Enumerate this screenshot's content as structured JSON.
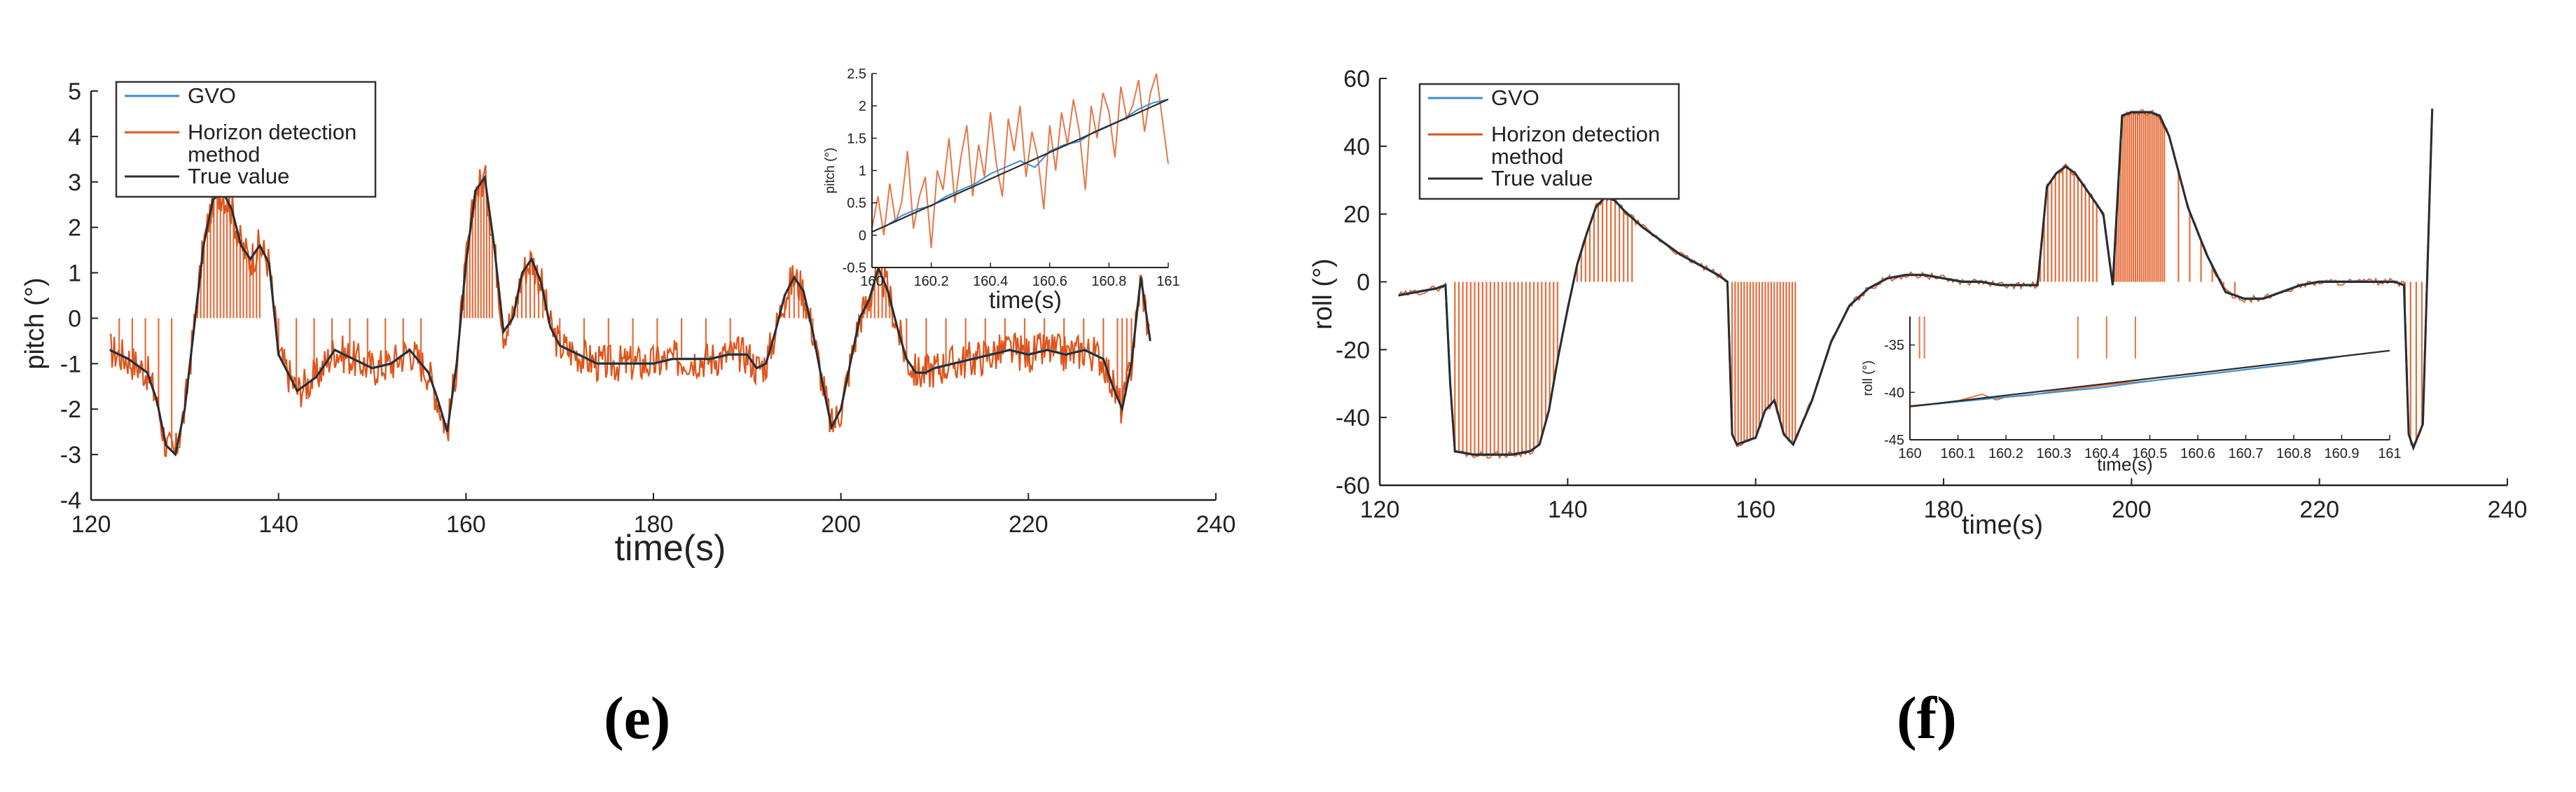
{
  "captions": {
    "left": "(e)",
    "right": "(f)"
  },
  "colors": {
    "gvo": "#3a8fd0",
    "horizon": "#e0541a",
    "truth": "#2c2c2c",
    "axis": "#222222"
  },
  "chart_data": [
    {
      "id": "pitch-main",
      "type": "line",
      "title": "",
      "xlabel": "time(s)",
      "ylabel": "pitch  (°)",
      "xlim": [
        120,
        240
      ],
      "ylim": [
        -4,
        5
      ],
      "xticks": [
        120,
        140,
        160,
        180,
        200,
        220,
        240
      ],
      "yticks": [
        5,
        4,
        3,
        2,
        1,
        0,
        -1,
        -2,
        -3,
        -4
      ],
      "legend": {
        "position": "top-left",
        "entries": [
          {
            "key": "gvo",
            "label": "GVO"
          },
          {
            "key": "horizon",
            "label": [
              "Horizon detection",
              "method"
            ]
          },
          {
            "key": "truth",
            "label": "True value"
          }
        ]
      },
      "series": [
        {
          "name": "True value",
          "key": "truth",
          "x": [
            122,
            124,
            126,
            127,
            128,
            129,
            130,
            131,
            132,
            133,
            134,
            135,
            136,
            137,
            138,
            139,
            140,
            142,
            144,
            146,
            148,
            150,
            152,
            154,
            156,
            157,
            158,
            159,
            160,
            161,
            162,
            163,
            164,
            165,
            166,
            167,
            168,
            169,
            170,
            172,
            174,
            176,
            178,
            180,
            182,
            184,
            186,
            188,
            190,
            191,
            192,
            193,
            194,
            195,
            196,
            197,
            198,
            199,
            200,
            201,
            202,
            203,
            204,
            205,
            206,
            207,
            208,
            209,
            210,
            212,
            214,
            216,
            218,
            220,
            222,
            224,
            226,
            228,
            229,
            230,
            231,
            232,
            233
          ],
          "y": [
            -0.7,
            -0.9,
            -1.2,
            -1.8,
            -2.8,
            -3.0,
            -2.0,
            -0.2,
            1.6,
            2.6,
            2.8,
            2.4,
            1.6,
            1.3,
            1.6,
            1.2,
            -0.8,
            -1.6,
            -1.3,
            -0.7,
            -0.9,
            -1.1,
            -1.0,
            -0.7,
            -1.2,
            -1.8,
            -2.5,
            -1.0,
            1.2,
            2.8,
            3.1,
            1.6,
            -0.3,
            0.0,
            1.0,
            1.3,
            0.8,
            -0.2,
            -0.6,
            -0.8,
            -1.0,
            -1.0,
            -1.0,
            -1.0,
            -0.9,
            -0.9,
            -0.9,
            -0.8,
            -0.8,
            -1.1,
            -1.0,
            -0.3,
            0.5,
            0.9,
            0.6,
            -0.3,
            -1.4,
            -2.4,
            -2.0,
            -1.0,
            0.0,
            0.4,
            1.1,
            0.6,
            -0.2,
            -0.9,
            -1.2,
            -1.2,
            -1.1,
            -1.0,
            -0.9,
            -0.8,
            -0.7,
            -0.8,
            -0.7,
            -0.8,
            -0.7,
            -0.9,
            -1.5,
            -2.0,
            -1.0,
            0.9,
            -0.5
          ]
        }
      ],
      "inset": {
        "xlabel": "time(s)",
        "ylabel": "pitch  (°)",
        "xlim": [
          160,
          161
        ],
        "ylim": [
          -0.5,
          2.5
        ],
        "xticks": [
          160,
          160.2,
          160.4,
          160.6,
          160.8,
          161
        ],
        "yticks": [
          2.5,
          2,
          1.5,
          1,
          0.5,
          0,
          -0.5
        ],
        "series": [
          {
            "name": "GVO",
            "key": "gvo",
            "x": [
              160,
              160.05,
              160.1,
              160.15,
              160.2,
              160.25,
              160.3,
              160.35,
              160.4,
              160.45,
              160.5,
              160.55,
              160.6,
              160.65,
              160.7,
              160.75,
              160.8,
              160.85,
              160.9,
              160.95,
              161
            ],
            "y": [
              0.05,
              0.15,
              0.3,
              0.4,
              0.45,
              0.6,
              0.7,
              0.8,
              0.95,
              1.05,
              1.15,
              1.05,
              1.3,
              1.4,
              1.45,
              1.6,
              1.7,
              1.8,
              1.95,
              2.05,
              2.1
            ]
          },
          {
            "name": "Horizon detection method",
            "key": "horizon",
            "x": [
              160,
              160.02,
              160.04,
              160.06,
              160.08,
              160.1,
              160.12,
              160.14,
              160.16,
              160.18,
              160.2,
              160.22,
              160.24,
              160.26,
              160.28,
              160.3,
              160.32,
              160.34,
              160.36,
              160.38,
              160.4,
              160.42,
              160.44,
              160.46,
              160.48,
              160.5,
              160.52,
              160.54,
              160.56,
              160.58,
              160.6,
              160.62,
              160.64,
              160.66,
              160.68,
              160.7,
              160.72,
              160.74,
              160.76,
              160.78,
              160.8,
              160.82,
              160.84,
              160.86,
              160.88,
              160.9,
              160.92,
              160.94,
              160.96,
              160.98,
              161
            ],
            "y": [
              0.1,
              0.6,
              0.0,
              0.8,
              0.2,
              0.5,
              1.3,
              0.1,
              0.6,
              0.9,
              -0.2,
              1.0,
              0.7,
              1.5,
              0.5,
              1.2,
              1.7,
              0.6,
              1.4,
              0.9,
              1.9,
              1.1,
              0.6,
              1.8,
              1.3,
              2.0,
              0.9,
              1.6,
              1.2,
              0.4,
              1.7,
              1.0,
              1.9,
              1.4,
              2.1,
              1.6,
              0.7,
              2.0,
              1.5,
              2.2,
              1.9,
              1.2,
              2.3,
              1.8,
              2.0,
              2.4,
              1.6,
              2.2,
              2.5,
              1.8,
              1.1
            ]
          },
          {
            "name": "True value",
            "key": "truth",
            "x": [
              160,
              161
            ],
            "y": [
              0.05,
              2.1
            ]
          }
        ]
      }
    },
    {
      "id": "roll-main",
      "type": "line",
      "title": "",
      "xlabel": "time(s)",
      "ylabel": "roll  (°)",
      "xlim": [
        120,
        240
      ],
      "ylim": [
        -60,
        60
      ],
      "xticks": [
        120,
        140,
        160,
        180,
        200,
        220,
        240
      ],
      "yticks": [
        60,
        40,
        20,
        0,
        -20,
        -40,
        -60
      ],
      "legend": {
        "position": "top-left",
        "entries": [
          {
            "key": "gvo",
            "label": "GVO"
          },
          {
            "key": "horizon",
            "label": [
              "Horizon detection",
              "method"
            ]
          },
          {
            "key": "truth",
            "label": "True value"
          }
        ]
      },
      "series": [
        {
          "name": "True value",
          "key": "truth",
          "x": [
            122,
            124,
            126,
            127,
            127.5,
            128,
            130,
            132,
            134,
            136,
            137,
            138,
            139,
            140,
            141,
            142,
            143,
            144,
            145,
            146,
            148,
            150,
            152,
            154,
            156,
            157,
            157.5,
            158,
            160,
            161,
            162,
            163,
            164,
            166,
            168,
            170,
            172,
            174,
            176,
            178,
            180,
            182,
            184,
            186,
            188,
            189.5,
            190,
            191,
            192,
            193,
            194,
            195,
            196,
            197,
            198,
            199,
            200,
            202,
            203,
            204,
            206,
            208,
            210,
            212,
            214,
            216,
            218,
            220,
            222,
            224,
            226,
            228,
            229,
            229.5,
            230,
            231,
            232
          ],
          "y": [
            -4,
            -3,
            -2,
            -1,
            -30,
            -50,
            -51,
            -51,
            -51,
            -50,
            -48,
            -38,
            -22,
            -8,
            5,
            14,
            22,
            25,
            24,
            21,
            16,
            12,
            8,
            5,
            2,
            0,
            -45,
            -48,
            -46,
            -38,
            -35,
            -45,
            -48,
            -35,
            -18,
            -7,
            -2,
            1,
            2,
            2,
            1,
            0,
            0,
            -1,
            -1,
            -1,
            -1,
            28,
            32,
            34,
            32,
            28,
            24,
            20,
            -1,
            49,
            50,
            50,
            49,
            43,
            22,
            8,
            -3,
            -5,
            -5,
            -3,
            -1,
            0,
            0,
            0,
            0,
            0,
            -1,
            -45,
            -49,
            -42,
            51
          ]
        }
      ],
      "inset": {
        "xlabel": "time(s)",
        "ylabel": "roll  (°)",
        "xlim": [
          160,
          161
        ],
        "ylim": [
          -45,
          -32
        ],
        "xticks": [
          160,
          160.1,
          160.2,
          160.3,
          160.4,
          160.5,
          160.6,
          160.7,
          160.8,
          160.9,
          161
        ],
        "yticks": [
          -35,
          -40,
          -45
        ],
        "series": [
          {
            "name": "GVO",
            "key": "gvo",
            "x": [
              160,
              160.1,
              160.2,
              160.3,
              160.4,
              160.5,
              160.6,
              160.7,
              160.8,
              160.9,
              161
            ],
            "y": [
              -41.5,
              -41.0,
              -40.5,
              -40.0,
              -39.5,
              -38.8,
              -38.2,
              -37.6,
              -37.0,
              -36.2,
              -35.6
            ]
          },
          {
            "name": "Horizon detection method",
            "key": "horizon",
            "x": [
              160,
              160.05,
              160.1,
              160.15,
              160.18,
              160.2,
              160.25,
              160.3,
              160.35,
              160.4,
              160.45,
              160.5,
              160.55,
              160.6,
              160.65,
              160.7,
              160.75,
              160.8,
              160.85,
              160.9,
              160.95,
              161
            ],
            "y": [
              -41.4,
              -41.2,
              -40.9,
              -40.2,
              -40.8,
              -40.5,
              -40.3,
              -39.9,
              -39.6,
              -39.3,
              -39.0,
              -38.8,
              -38.5,
              -38.2,
              -37.9,
              -37.6,
              -37.3,
              -37.0,
              -36.6,
              -36.2,
              -35.9,
              -35.6
            ]
          },
          {
            "name": "True value",
            "key": "truth",
            "x": [
              160,
              161
            ],
            "y": [
              -41.5,
              -35.6
            ]
          }
        ]
      }
    }
  ]
}
